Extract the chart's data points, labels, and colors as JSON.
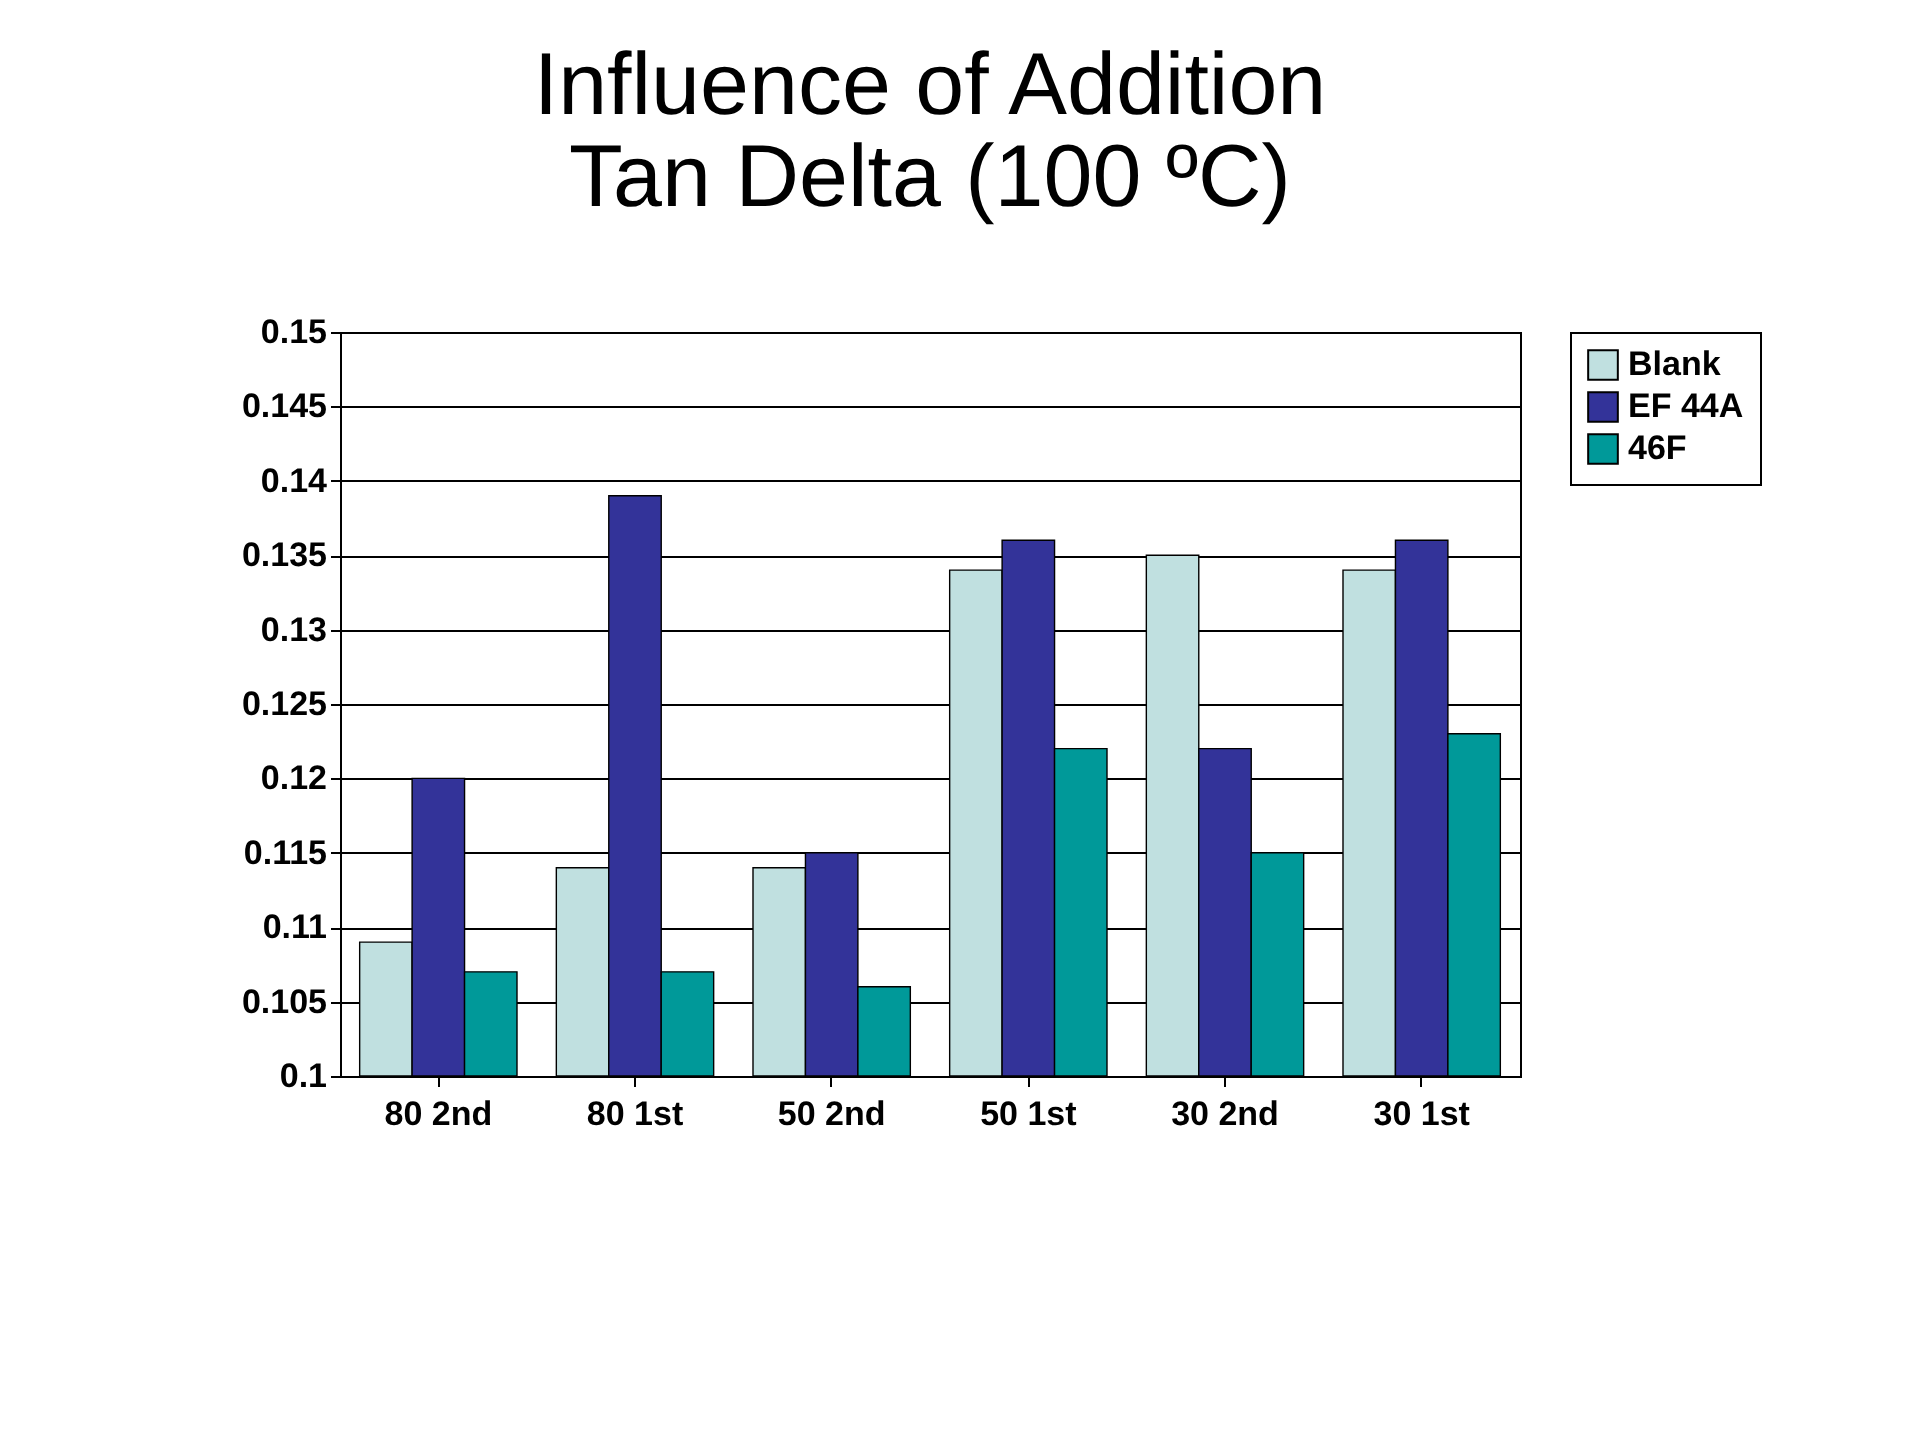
{
  "chart_data": {
    "type": "bar",
    "title": [
      "Influence of Addition",
      "Tan Delta (100 ºC)"
    ],
    "categories": [
      "80 2nd",
      "80 1st",
      "50 2nd",
      "50 1st",
      "30 2nd",
      "30 1st"
    ],
    "series": [
      {
        "name": "Blank",
        "color": "#c0e0e0",
        "values": [
          0.109,
          0.114,
          0.114,
          0.134,
          0.135,
          0.134
        ]
      },
      {
        "name": "EF 44A",
        "color": "#333399",
        "values": [
          0.12,
          0.139,
          0.115,
          0.136,
          0.122,
          0.136
        ]
      },
      {
        "name": "46F",
        "color": "#009999",
        "values": [
          0.107,
          0.107,
          0.106,
          0.122,
          0.115,
          0.123
        ]
      }
    ],
    "ylim": [
      0.1,
      0.15
    ],
    "yticks": [
      0.1,
      0.105,
      0.11,
      0.115,
      0.12,
      0.125,
      0.13,
      0.135,
      0.14,
      0.145,
      0.15
    ],
    "grid": "y",
    "legend": "right"
  }
}
